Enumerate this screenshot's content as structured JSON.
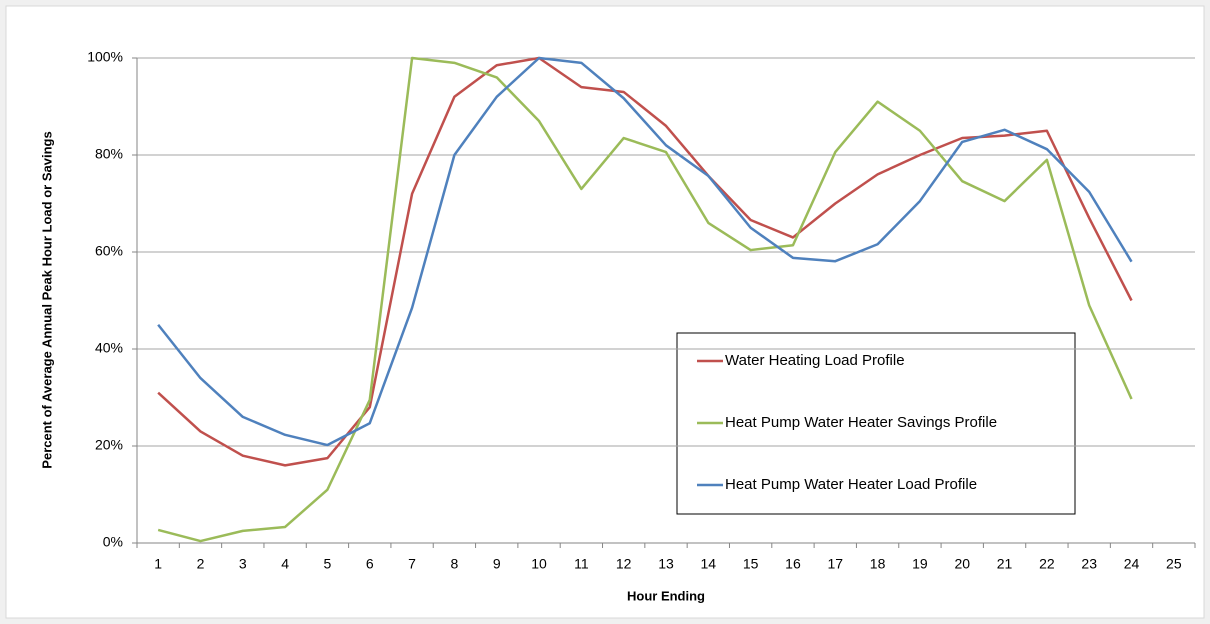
{
  "chart_data": {
    "type": "line",
    "y_label": "Percent of Average Annual Peak Hour Load or Savings",
    "x_label": "Hour Ending",
    "categories": [
      1,
      2,
      3,
      4,
      5,
      6,
      7,
      8,
      9,
      10,
      11,
      12,
      13,
      14,
      15,
      16,
      17,
      18,
      19,
      20,
      21,
      22,
      23,
      24,
      25
    ],
    "series": [
      {
        "name": "Water Heating Load Profile",
        "color": "#c0504d",
        "values": [
          31,
          23,
          18,
          16,
          17.5,
          28,
          72,
          92,
          98.5,
          100,
          94,
          93,
          86,
          75.7,
          66.6,
          63,
          70,
          76,
          80,
          83.5,
          84,
          85,
          67,
          50,
          null
        ]
      },
      {
        "name": "Heat Pump Water Heater Savings Profile",
        "color": "#9bbb59",
        "values": [
          2.7,
          0.4,
          2.5,
          3.3,
          11,
          29.5,
          100,
          99,
          96,
          87,
          73,
          83.5,
          80.6,
          66,
          60.4,
          61.4,
          80.6,
          91,
          85,
          74.6,
          70.5,
          79,
          49,
          29.7,
          null
        ]
      },
      {
        "name": "Heat Pump Water Heater Load Profile",
        "color": "#4f81bd",
        "values": [
          45,
          34,
          26,
          22.3,
          20.2,
          24.7,
          48.5,
          80,
          92,
          100,
          99,
          91.7,
          82,
          75.7,
          65,
          58.8,
          58.1,
          61.6,
          70.5,
          82.7,
          85.2,
          81.2,
          72.4,
          58,
          null
        ]
      }
    ],
    "ylim": [
      0,
      100
    ],
    "yticks": [
      {
        "value": 0,
        "label": "0%"
      },
      {
        "value": 20,
        "label": "20%"
      },
      {
        "value": 40,
        "label": "40%"
      },
      {
        "value": 60,
        "label": "60%"
      },
      {
        "value": 80,
        "label": "80%"
      },
      {
        "value": 100,
        "label": "100%"
      }
    ],
    "grid": true
  }
}
